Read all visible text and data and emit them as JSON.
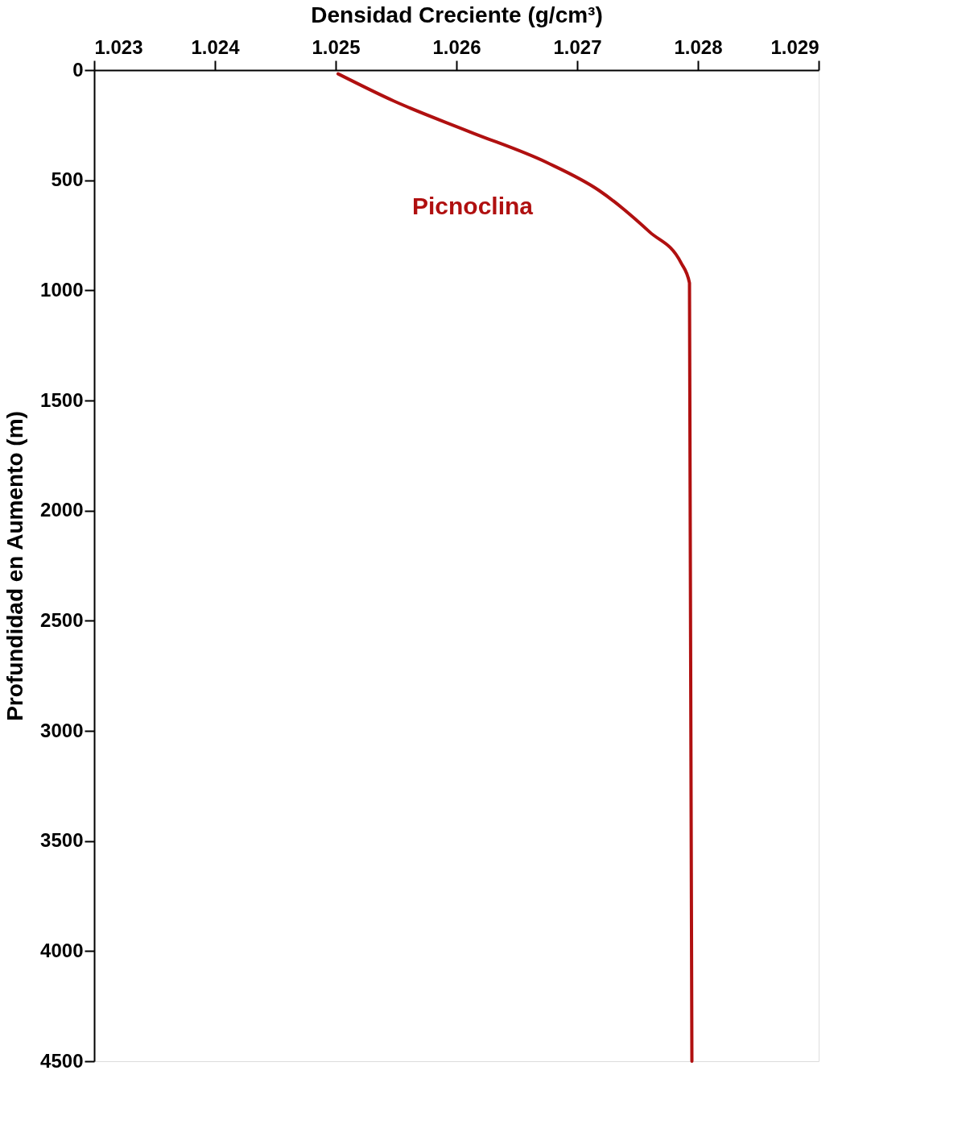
{
  "chart_data": {
    "type": "line",
    "xlabel": "Densidad Creciente (g/cm³)",
    "ylabel": "Profundidad en Aumento (m)",
    "series": [
      {
        "color": "#b01010",
        "x": [
          1.02502,
          1.02548,
          1.02611,
          1.02675,
          1.02718,
          1.0276,
          1.02786,
          1.02793,
          1.02795
        ],
        "values": [
          17,
          140,
          280,
          420,
          546,
          735,
          875,
          966,
          4500
        ]
      }
    ],
    "xlim": [
      1.023,
      1.029
    ],
    "xticks": [
      1.023,
      1.024,
      1.025,
      1.026,
      1.027,
      1.028,
      1.029
    ],
    "ylim": [
      4500,
      0
    ],
    "yticks": [
      0,
      500,
      1000,
      1500,
      2000,
      2500,
      3000,
      3500,
      4000,
      4500
    ],
    "annotations": [
      "Picnoclina"
    ],
    "line_style": "solid",
    "marker": "none"
  }
}
